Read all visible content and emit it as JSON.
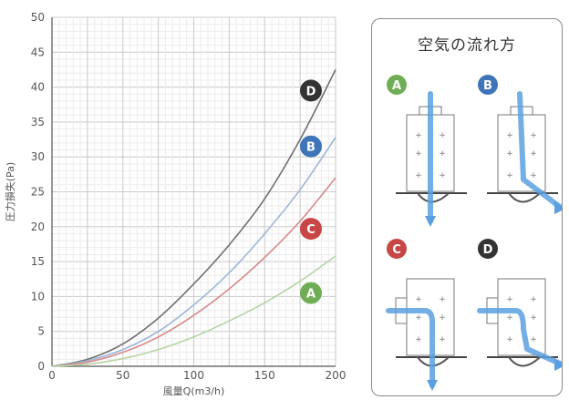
{
  "chart_data": {
    "type": "line",
    "xlabel": "風量Q(m3/h)",
    "ylabel": "圧力損失(Pa)",
    "xlim": [
      0,
      200
    ],
    "ylim": [
      0,
      50
    ],
    "xticks": [
      0,
      50,
      100,
      150,
      200
    ],
    "yticks": [
      0,
      5,
      10,
      15,
      20,
      25,
      30,
      35,
      40,
      45,
      50
    ],
    "grid": true,
    "x": [
      0,
      25,
      50,
      75,
      100,
      125,
      150,
      175,
      200
    ],
    "series": [
      {
        "name": "D",
        "color": "#6f6f6f",
        "values": [
          0,
          1.0,
          3.2,
          6.9,
          11.8,
          17.4,
          24.0,
          32.5,
          42.5
        ]
      },
      {
        "name": "B",
        "color": "#9bb6d8",
        "values": [
          0,
          0.8,
          2.4,
          5.0,
          8.8,
          13.4,
          19.0,
          25.3,
          32.8
        ]
      },
      {
        "name": "C",
        "color": "#d88a8a",
        "values": [
          0,
          0.6,
          2.0,
          4.2,
          7.3,
          11.1,
          15.6,
          20.8,
          27.0
        ]
      },
      {
        "name": "A",
        "color": "#b7d3a3",
        "values": [
          0,
          0.3,
          1.1,
          2.4,
          4.2,
          6.5,
          9.1,
          12.2,
          15.8
        ]
      }
    ],
    "legend_placement": "right-of-curves"
  },
  "badges": [
    {
      "label": "D",
      "color": "#333333"
    },
    {
      "label": "B",
      "color": "#3f74b8"
    },
    {
      "label": "C",
      "color": "#c94646"
    },
    {
      "label": "A",
      "color": "#6fae55"
    }
  ],
  "panel": {
    "title": "空気の流れ方",
    "diagrams": [
      {
        "label": "A",
        "color": "#6fae55",
        "arrow_color": "#5aa0e0"
      },
      {
        "label": "B",
        "color": "#3f74b8",
        "arrow_color": "#5aa0e0"
      },
      {
        "label": "C",
        "color": "#c94646",
        "arrow_color": "#5aa0e0"
      },
      {
        "label": "D",
        "color": "#333333",
        "arrow_color": "#5aa0e0"
      }
    ]
  }
}
